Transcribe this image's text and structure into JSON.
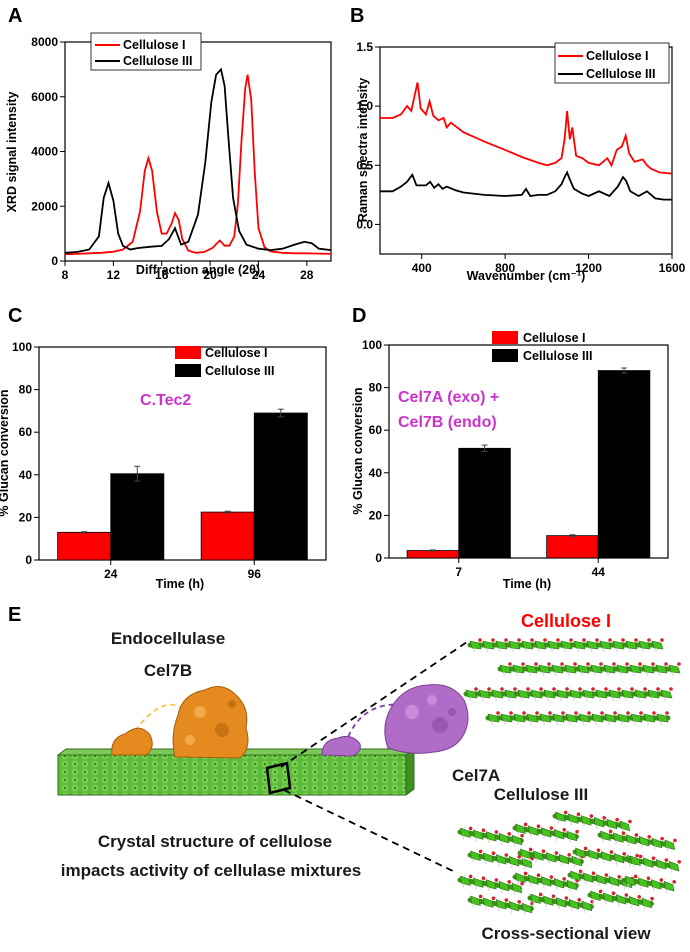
{
  "figure": {
    "panel_labels": [
      "A",
      "B",
      "C",
      "D",
      "E"
    ],
    "colors": {
      "cellulose_I": "#ff0000",
      "cellulose_III": "#000000",
      "accent": "#cc33cc",
      "fiber": "#4caf2a",
      "endo": "#e58a1e",
      "exo": "#a259b3"
    }
  },
  "panelE": {
    "endocellulase_label": "Endocellulase",
    "cel7b_label": "Cel7B",
    "cel7a_label": "Cel7A",
    "cellulose_I_label": "Cellulose I",
    "cellulose_III_label": "Cellulose III",
    "caption_line1": "Crystal structure of cellulose",
    "caption_line2": "impacts activity of cellulase mixtures",
    "cross_section_label": "Cross-sectional view"
  },
  "chart_data": [
    {
      "id": "A",
      "type": "line",
      "xlabel": "Diffraction angle (2θ)",
      "ylabel": "XRD signal intensity",
      "xlim": [
        8,
        30
      ],
      "ylim": [
        0,
        8000
      ],
      "xticks": [
        8,
        12,
        16,
        20,
        24,
        28
      ],
      "yticks": [
        0,
        2000,
        4000,
        6000,
        8000
      ],
      "legend": [
        "Cellulose I",
        "Cellulose III"
      ],
      "series": [
        {
          "name": "Cellulose I",
          "color": "#ff0000",
          "x": [
            8,
            9,
            10,
            11,
            12,
            12.8,
            13.6,
            14.2,
            14.6,
            14.9,
            15.2,
            15.6,
            16.0,
            16.4,
            16.8,
            17.1,
            17.4,
            17.7,
            18.2,
            18.8,
            19.5,
            20.2,
            20.8,
            21.2,
            21.6,
            22.0,
            22.3,
            22.6,
            22.9,
            23.1,
            23.4,
            23.7,
            24.0,
            24.5,
            25,
            26,
            27,
            28,
            29,
            30
          ],
          "y": [
            250,
            260,
            280,
            300,
            340,
            420,
            700,
            1800,
            3300,
            3760,
            3300,
            1800,
            1000,
            1000,
            1350,
            1750,
            1500,
            800,
            380,
            300,
            330,
            480,
            750,
            560,
            560,
            900,
            2100,
            4400,
            6300,
            6800,
            5900,
            3200,
            1200,
            500,
            350,
            300,
            280,
            280,
            270,
            260
          ]
        },
        {
          "name": "Cellulose III",
          "color": "#000000",
          "x": [
            8,
            9,
            10,
            10.8,
            11.2,
            11.6,
            12.0,
            12.4,
            12.8,
            13.4,
            14,
            15,
            16,
            16.6,
            17.1,
            17.6,
            18.2,
            19.0,
            19.6,
            20.1,
            20.5,
            20.9,
            21.2,
            21.5,
            21.9,
            22.4,
            23,
            24,
            25,
            26,
            27,
            27.8,
            28.4,
            29,
            30
          ],
          "y": [
            300,
            330,
            420,
            900,
            2300,
            2850,
            2200,
            1000,
            550,
            420,
            470,
            520,
            550,
            800,
            1200,
            600,
            700,
            1700,
            3600,
            5800,
            6800,
            7000,
            6400,
            4600,
            2300,
            1100,
            600,
            450,
            400,
            450,
            600,
            700,
            650,
            450,
            400
          ]
        }
      ]
    },
    {
      "id": "B",
      "type": "line",
      "xlabel": "Wavenumber (cm⁻¹)",
      "ylabel": "Raman spectra intensity",
      "xlim": [
        200,
        1600
      ],
      "ylim": [
        -0.25,
        1.5
      ],
      "xticks": [
        400,
        800,
        1200,
        1600
      ],
      "yticks": [
        0.0,
        0.5,
        1.0,
        1.5
      ],
      "legend": [
        "Cellulose I",
        "Cellulose III"
      ],
      "series": [
        {
          "name": "Cellulose I",
          "color": "#ff0000",
          "x": [
            200,
            260,
            300,
            330,
            350,
            365,
            380,
            395,
            420,
            438,
            455,
            480,
            505,
            520,
            540,
            600,
            700,
            800,
            880,
            960,
            1000,
            1040,
            1070,
            1085,
            1097,
            1110,
            1122,
            1140,
            1170,
            1200,
            1250,
            1290,
            1310,
            1335,
            1360,
            1378,
            1395,
            1420,
            1460,
            1480,
            1500,
            1540,
            1600
          ],
          "y": [
            0.9,
            0.9,
            0.93,
            1.0,
            0.96,
            1.08,
            1.2,
            0.98,
            0.93,
            1.04,
            0.92,
            0.88,
            0.9,
            0.82,
            0.86,
            0.78,
            0.7,
            0.63,
            0.57,
            0.52,
            0.5,
            0.52,
            0.56,
            0.72,
            0.96,
            0.72,
            0.82,
            0.58,
            0.56,
            0.52,
            0.5,
            0.56,
            0.5,
            0.63,
            0.66,
            0.75,
            0.6,
            0.53,
            0.55,
            0.5,
            0.47,
            0.44,
            0.43
          ]
        },
        {
          "name": "Cellulose III",
          "color": "#000000",
          "x": [
            200,
            260,
            300,
            330,
            355,
            375,
            390,
            420,
            440,
            460,
            480,
            500,
            520,
            560,
            600,
            700,
            800,
            880,
            900,
            920,
            960,
            1000,
            1040,
            1070,
            1085,
            1097,
            1110,
            1130,
            1170,
            1200,
            1250,
            1300,
            1340,
            1365,
            1380,
            1400,
            1440,
            1480,
            1520,
            1560,
            1600
          ],
          "y": [
            0.28,
            0.28,
            0.32,
            0.36,
            0.42,
            0.33,
            0.33,
            0.33,
            0.36,
            0.31,
            0.34,
            0.3,
            0.32,
            0.29,
            0.27,
            0.25,
            0.24,
            0.25,
            0.3,
            0.24,
            0.25,
            0.25,
            0.28,
            0.34,
            0.4,
            0.44,
            0.38,
            0.3,
            0.26,
            0.24,
            0.28,
            0.24,
            0.32,
            0.4,
            0.37,
            0.28,
            0.24,
            0.28,
            0.22,
            0.21,
            0.21
          ]
        }
      ]
    },
    {
      "id": "C",
      "type": "bar",
      "title": "C.Tec2",
      "xlabel": "Time (h)",
      "ylabel": "% Glucan conversion",
      "categories": [
        "24",
        "96"
      ],
      "ylim": [
        0,
        100
      ],
      "yticks": [
        0,
        20,
        40,
        60,
        80,
        100
      ],
      "series": [
        {
          "name": "Cellulose I",
          "color": "#ff0000",
          "values": [
            13,
            22.5
          ],
          "errors": [
            0.3,
            0.4
          ]
        },
        {
          "name": "Cellulose III",
          "color": "#000000",
          "values": [
            40.5,
            69
          ],
          "errors": [
            3.5,
            1.8
          ]
        }
      ]
    },
    {
      "id": "D",
      "type": "bar",
      "title_line1": "Cel7A (exo) +",
      "title_line2": "Cel7B (endo)",
      "xlabel": "Time (h)",
      "ylabel": "% Glucan conversion",
      "categories": [
        "7",
        "44"
      ],
      "ylim": [
        0,
        100
      ],
      "yticks": [
        0,
        20,
        40,
        60,
        80,
        100
      ],
      "series": [
        {
          "name": "Cellulose I",
          "color": "#ff0000",
          "values": [
            3.5,
            10.5
          ],
          "errors": [
            0.3,
            0.4
          ]
        },
        {
          "name": "Cellulose III",
          "color": "#000000",
          "values": [
            51.5,
            88
          ],
          "errors": [
            1.5,
            1.2
          ]
        }
      ]
    }
  ]
}
